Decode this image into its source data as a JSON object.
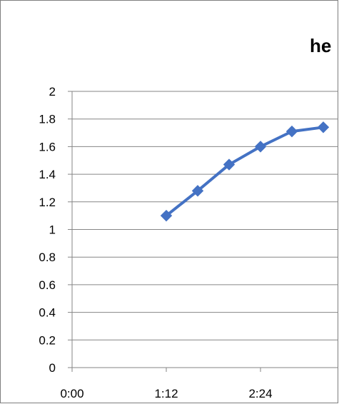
{
  "chart_data": {
    "type": "line",
    "title": "he",
    "xlabel": "",
    "ylabel": "",
    "x_ticks": [
      "0:00",
      "1:12",
      "2:24"
    ],
    "x_tick_minutes": [
      0,
      72,
      144
    ],
    "y_ticks": [
      "0",
      "0.2",
      "0.4",
      "0.6",
      "0.8",
      "1",
      "1.2",
      "1.4",
      "1.6",
      "1.8",
      "2"
    ],
    "ylim": [
      0,
      2
    ],
    "grid": true,
    "series": [
      {
        "color": "#4472c4",
        "marker": "diamond",
        "x_minutes": [
          72,
          96,
          120,
          144,
          168,
          192
        ],
        "values": [
          1.1,
          1.28,
          1.47,
          1.6,
          1.71,
          1.74
        ]
      }
    ]
  }
}
